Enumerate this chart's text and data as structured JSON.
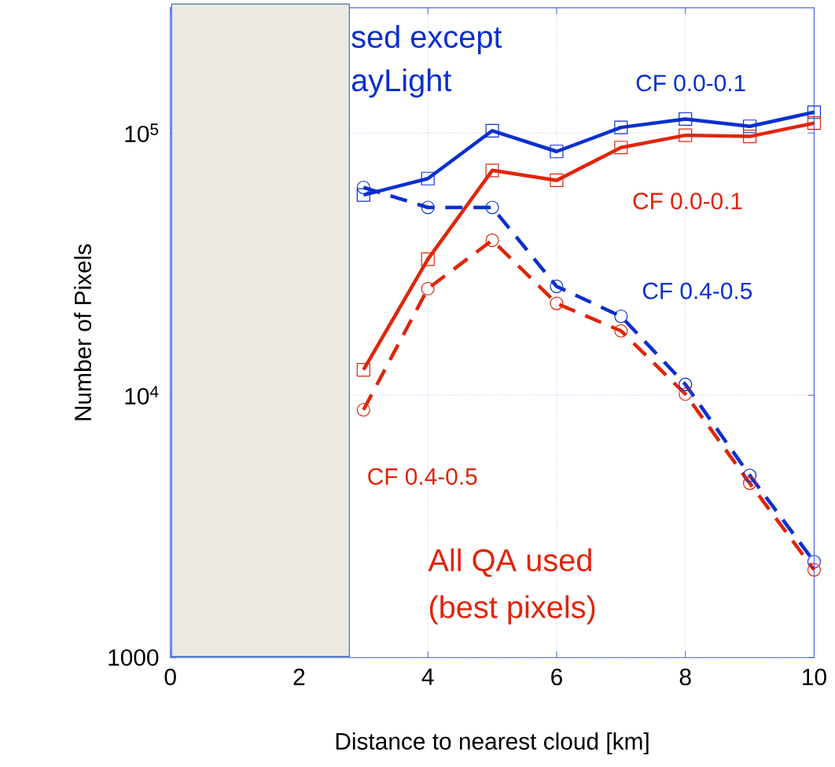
{
  "chart_data": {
    "type": "line",
    "xlabel": "Distance to nearest cloud [km]",
    "ylabel": "Number of Pixels",
    "x": [
      3,
      4,
      5,
      6,
      7,
      8,
      9,
      10
    ],
    "series": [
      {
        "name": "CF 0.0-0.1",
        "color": "#0a2fd0",
        "marker": "square",
        "line_style": "solid",
        "values": [
          58000,
          67000,
          102000,
          85000,
          105000,
          113000,
          106000,
          120000
        ]
      },
      {
        "name": "CF 0.0-0.1",
        "color": "#e0250a",
        "marker": "square",
        "line_style": "solid",
        "values": [
          12500,
          33000,
          72000,
          66000,
          88000,
          98000,
          97000,
          109000
        ]
      },
      {
        "name": "CF 0.4-0.5",
        "color": "#0a2fd0",
        "marker": "circle",
        "line_style": "dashed",
        "values": [
          62000,
          52000,
          52000,
          26000,
          20000,
          11000,
          4950,
          2320
        ]
      },
      {
        "name": "CF 0.4-0.5",
        "color": "#e0250a",
        "marker": "circle",
        "line_style": "dashed",
        "values": [
          8800,
          25500,
          39000,
          22400,
          17600,
          10100,
          4620,
          2160
        ]
      }
    ],
    "annotations": [
      "sed except",
      "ayLight",
      "All QA used",
      "(best pixels)"
    ],
    "xlim": [
      0,
      10
    ],
    "ylim": [
      1000,
      300000
    ],
    "xticks": [
      0,
      2,
      4,
      6,
      8,
      10
    ],
    "yticks": [
      1000,
      {
        "value": 10000,
        "label": "10$^{4}$"
      },
      {
        "value": 100000,
        "label": "10$^{5}$"
      }
    ],
    "log": "y",
    "grid": true
  }
}
